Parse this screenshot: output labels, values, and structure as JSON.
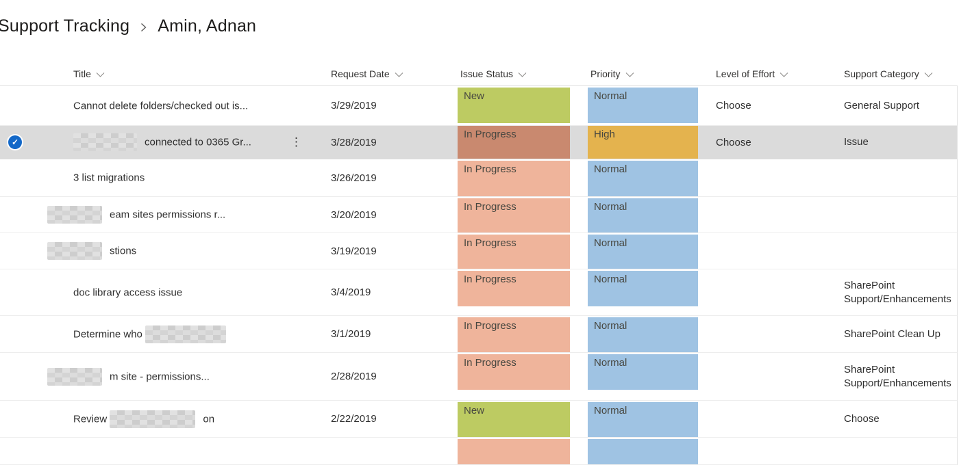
{
  "breadcrumb": {
    "list_title": "Support Tracking",
    "item_title": "Amin, Adnan"
  },
  "columns": [
    {
      "label": "Title"
    },
    {
      "label": "Request Date"
    },
    {
      "label": "Issue Status"
    },
    {
      "label": "Priority"
    },
    {
      "label": "Level of Effort"
    },
    {
      "label": "Support Category"
    }
  ],
  "colors": {
    "status_new": "#bdcb62",
    "status_in_progress": "#efb49b",
    "status_in_progress_selected": "#c9896f",
    "priority_normal": "#9fc3e3",
    "priority_high": "#e4b34e",
    "selected_row_bg": "#dbdbdb",
    "check_circle_blue": "#1368c8"
  },
  "rows": [
    {
      "height": 58,
      "title_segments": [
        {
          "text": "Cannot delete folders/checked out is..."
        }
      ],
      "request_date": "3/29/2019",
      "issue_status": {
        "label": "New",
        "color_key": "status_new"
      },
      "priority": {
        "label": "Normal",
        "color_key": "priority_normal"
      },
      "level_of_effort": "Choose",
      "support_category": "General Support"
    },
    {
      "height": 49,
      "selected": true,
      "has_menu": true,
      "menu_icon": "⋮",
      "checkmark": "✓",
      "title_segments": [
        {
          "redacted": true,
          "width": 93
        },
        {
          "text": "connected to 0365 Gr..."
        }
      ],
      "request_date": "3/28/2019",
      "issue_status": {
        "label": "In Progress",
        "color_key": "status_in_progress_selected"
      },
      "priority": {
        "label": "High",
        "color_key": "priority_high"
      },
      "level_of_effort": "Choose",
      "support_category": "Issue"
    },
    {
      "height": 55,
      "title_segments": [
        {
          "text": "3 list migrations"
        }
      ],
      "request_date": "3/26/2019",
      "issue_status": {
        "label": "In Progress",
        "color_key": "status_in_progress"
      },
      "priority": {
        "label": "Normal",
        "color_key": "priority_normal"
      },
      "level_of_effort": "",
      "support_category": ""
    },
    {
      "height": 53,
      "title_segments": [
        {
          "redacted": true,
          "width": 80,
          "shift_left": true
        },
        {
          "text": "eam sites permissions r..."
        }
      ],
      "request_date": "3/20/2019",
      "issue_status": {
        "label": "In Progress",
        "color_key": "status_in_progress"
      },
      "priority": {
        "label": "Normal",
        "color_key": "priority_normal"
      },
      "level_of_effort": "",
      "support_category": ""
    },
    {
      "height": 53,
      "title_segments": [
        {
          "redacted": true,
          "width": 80,
          "shift_left": true
        },
        {
          "text": "stions"
        }
      ],
      "request_date": "3/19/2019",
      "issue_status": {
        "label": "In Progress",
        "color_key": "status_in_progress"
      },
      "priority": {
        "label": "Normal",
        "color_key": "priority_normal"
      },
      "level_of_effort": "",
      "support_category": ""
    },
    {
      "height": 68,
      "title_segments": [
        {
          "text": "doc library access issue"
        }
      ],
      "request_date": "3/4/2019",
      "issue_status": {
        "label": "In Progress",
        "color_key": "status_in_progress"
      },
      "priority": {
        "label": "Normal",
        "color_key": "priority_normal"
      },
      "level_of_effort": "",
      "support_category": "SharePoint Support/Enhancements"
    },
    {
      "height": 54,
      "title_segments": [
        {
          "text": "Determine who "
        },
        {
          "redacted": true,
          "width": 118
        }
      ],
      "request_date": "3/1/2019",
      "issue_status": {
        "label": "In Progress",
        "color_key": "status_in_progress"
      },
      "priority": {
        "label": "Normal",
        "color_key": "priority_normal"
      },
      "level_of_effort": "",
      "support_category": "SharePoint Clean Up"
    },
    {
      "height": 70,
      "title_segments": [
        {
          "redacted": true,
          "width": 80,
          "shift_left": true
        },
        {
          "text": "m site - permissions..."
        }
      ],
      "request_date": "2/28/2019",
      "issue_status": {
        "label": "In Progress",
        "color_key": "status_in_progress"
      },
      "priority": {
        "label": "Normal",
        "color_key": "priority_normal"
      },
      "level_of_effort": "",
      "support_category": "SharePoint Support/Enhancements"
    },
    {
      "height": 54,
      "title_segments": [
        {
          "text": "Review "
        },
        {
          "redacted": true,
          "width": 125
        },
        {
          "text": "on"
        }
      ],
      "request_date": "2/22/2019",
      "issue_status": {
        "label": "New",
        "color_key": "status_new"
      },
      "priority": {
        "label": "Normal",
        "color_key": "priority_normal"
      },
      "level_of_effort": "",
      "support_category": "Choose"
    },
    {
      "height": 40,
      "title_segments": [],
      "request_date": "",
      "issue_status": {
        "label": "",
        "color_key": "status_in_progress"
      },
      "priority": {
        "label": "",
        "color_key": "priority_normal"
      },
      "level_of_effort": "",
      "support_category": ""
    }
  ]
}
